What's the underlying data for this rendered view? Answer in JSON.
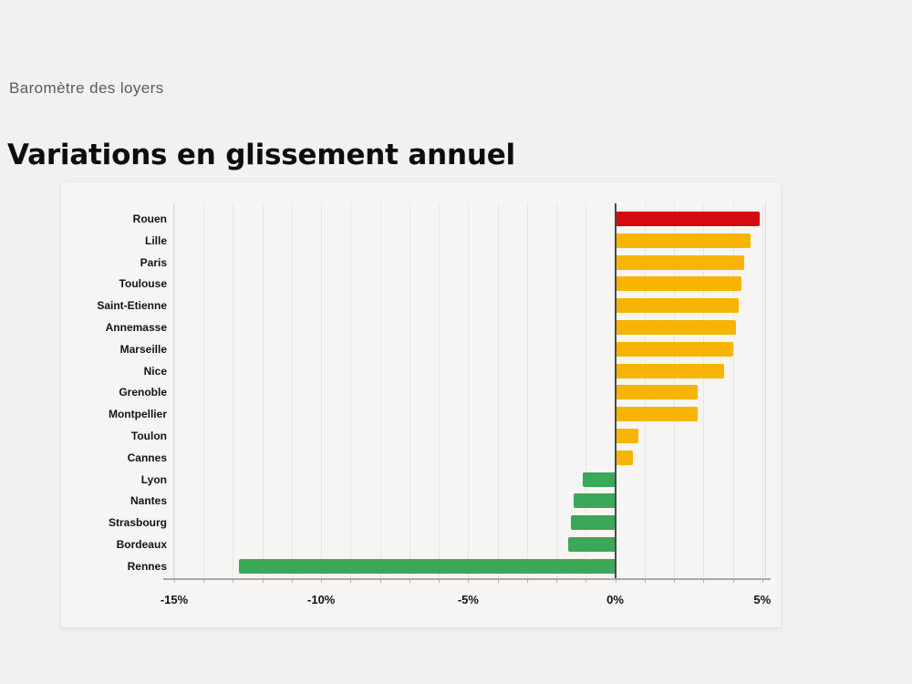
{
  "page": {
    "background_color": "#f2f1ef",
    "kicker": "Baromètre des loyers",
    "title": "Variations en glissement annuel"
  },
  "chart_data": {
    "type": "bar",
    "orientation": "horizontal",
    "title": "Variations en glissement annuel",
    "subtitle": "Baromètre des loyers",
    "unit": "%",
    "xlim": [
      -15,
      5.1
    ],
    "grid_step": 1,
    "grid": true,
    "x_ticks": [
      {
        "value": -15,
        "label": "-15%"
      },
      {
        "value": -10,
        "label": "-10%"
      },
      {
        "value": -5,
        "label": "-5%"
      },
      {
        "value": 0,
        "label": "0%"
      },
      {
        "value": 5,
        "label": "5%"
      }
    ],
    "categories": [
      "Rouen",
      "Lille",
      "Paris",
      "Toulouse",
      "Saint-Etienne",
      "Annemasse",
      "Marseille",
      "Nice",
      "Grenoble",
      "Montpellier",
      "Toulon",
      "Cannes",
      "Lyon",
      "Nantes",
      "Strasbourg",
      "Bordeaux",
      "Rennes"
    ],
    "values": [
      4.9,
      4.6,
      4.4,
      4.3,
      4.2,
      4.1,
      4.0,
      3.7,
      2.8,
      2.8,
      0.8,
      0.6,
      -1.1,
      -1.4,
      -1.5,
      -1.6,
      -12.8
    ],
    "bar_colors": [
      "red",
      "yellow",
      "yellow",
      "yellow",
      "yellow",
      "yellow",
      "yellow",
      "yellow",
      "yellow",
      "yellow",
      "yellow",
      "yellow",
      "green",
      "green",
      "green",
      "green",
      "green"
    ],
    "palette": {
      "red": "#d30b10",
      "yellow": "#f9b403",
      "green": "#3aa858"
    },
    "axis_color": "#a9a9a7",
    "zero_line_color": "#4a4a48",
    "gridline_color": "#e7e7e5"
  }
}
